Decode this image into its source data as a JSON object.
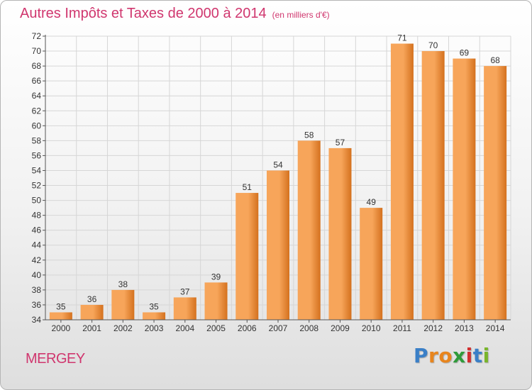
{
  "header": {
    "title": "Autres Impôts et Taxes de 2000 à 2014",
    "unit": "(en milliers d'€)"
  },
  "footer": {
    "city": "MERGEY",
    "brand_letters": [
      "P",
      "r",
      "o",
      "x",
      "i",
      "t",
      "i"
    ],
    "brand_colors": [
      "#3a7fc7",
      "#e8851d",
      "#e8851d",
      "#2f9b3a",
      "#d12f2f",
      "#3a7fc7",
      "#79b52b"
    ]
  },
  "colors": {
    "bar_light": "#f7a55a",
    "bar_dark": "#d4711e",
    "title": "#d0366e"
  },
  "chart_data": {
    "type": "bar",
    "categories": [
      "2000",
      "2001",
      "2002",
      "2003",
      "2004",
      "2005",
      "2006",
      "2007",
      "2008",
      "2009",
      "2010",
      "2011",
      "2012",
      "2013",
      "2014"
    ],
    "values": [
      35,
      36,
      38,
      35,
      37,
      39,
      51,
      54,
      58,
      57,
      49,
      71,
      70,
      69,
      68
    ],
    "ylim": [
      34,
      72
    ],
    "yticks": [
      34,
      36,
      38,
      40,
      42,
      44,
      46,
      48,
      50,
      52,
      54,
      56,
      58,
      60,
      62,
      64,
      66,
      68,
      70,
      72
    ],
    "grid": true,
    "data_labels": true
  }
}
